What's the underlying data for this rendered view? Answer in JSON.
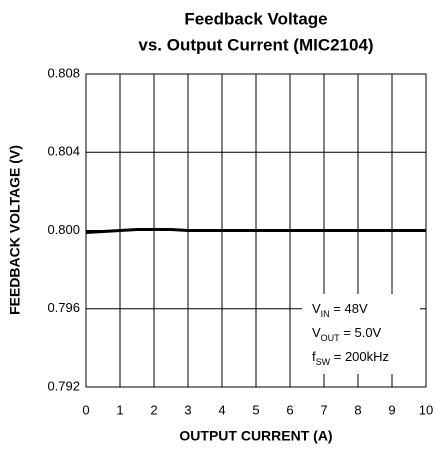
{
  "chart_data": {
    "type": "line",
    "title": [
      "Feedback Voltage",
      "vs. Output Current  (MIC2104)"
    ],
    "x_label": "OUTPUT CURRENT (A)",
    "y_label": "FEEDBACK VOLTAGE (V)",
    "x": [
      0,
      1,
      1.5,
      2,
      2.5,
      3,
      4,
      5,
      6,
      7,
      8,
      9,
      10
    ],
    "series": [
      {
        "name": "Feedback Voltage",
        "color": "#000000",
        "values": [
          0.7999,
          0.8,
          0.80005,
          0.80005,
          0.80005,
          0.8,
          0.8,
          0.8,
          0.8,
          0.8,
          0.8,
          0.8,
          0.8
        ]
      }
    ],
    "xlim": [
      0,
      10
    ],
    "xticks": [
      0,
      1,
      2,
      3,
      4,
      5,
      6,
      7,
      8,
      9,
      10
    ],
    "ylim": [
      0.792,
      0.808
    ],
    "yticks": [
      0.792,
      0.796,
      {
        "value": 0.8,
        "label": "0.800"
      },
      0.804,
      0.808
    ],
    "grid": true,
    "annotations": [
      {
        "main": "V",
        "sub": "IN",
        "tail": " = 48V"
      },
      {
        "main": "V",
        "sub": "OUT",
        "tail": " = 5.0V"
      },
      {
        "main": "f",
        "sub": "SW",
        "tail": " = 200kHz"
      }
    ]
  }
}
